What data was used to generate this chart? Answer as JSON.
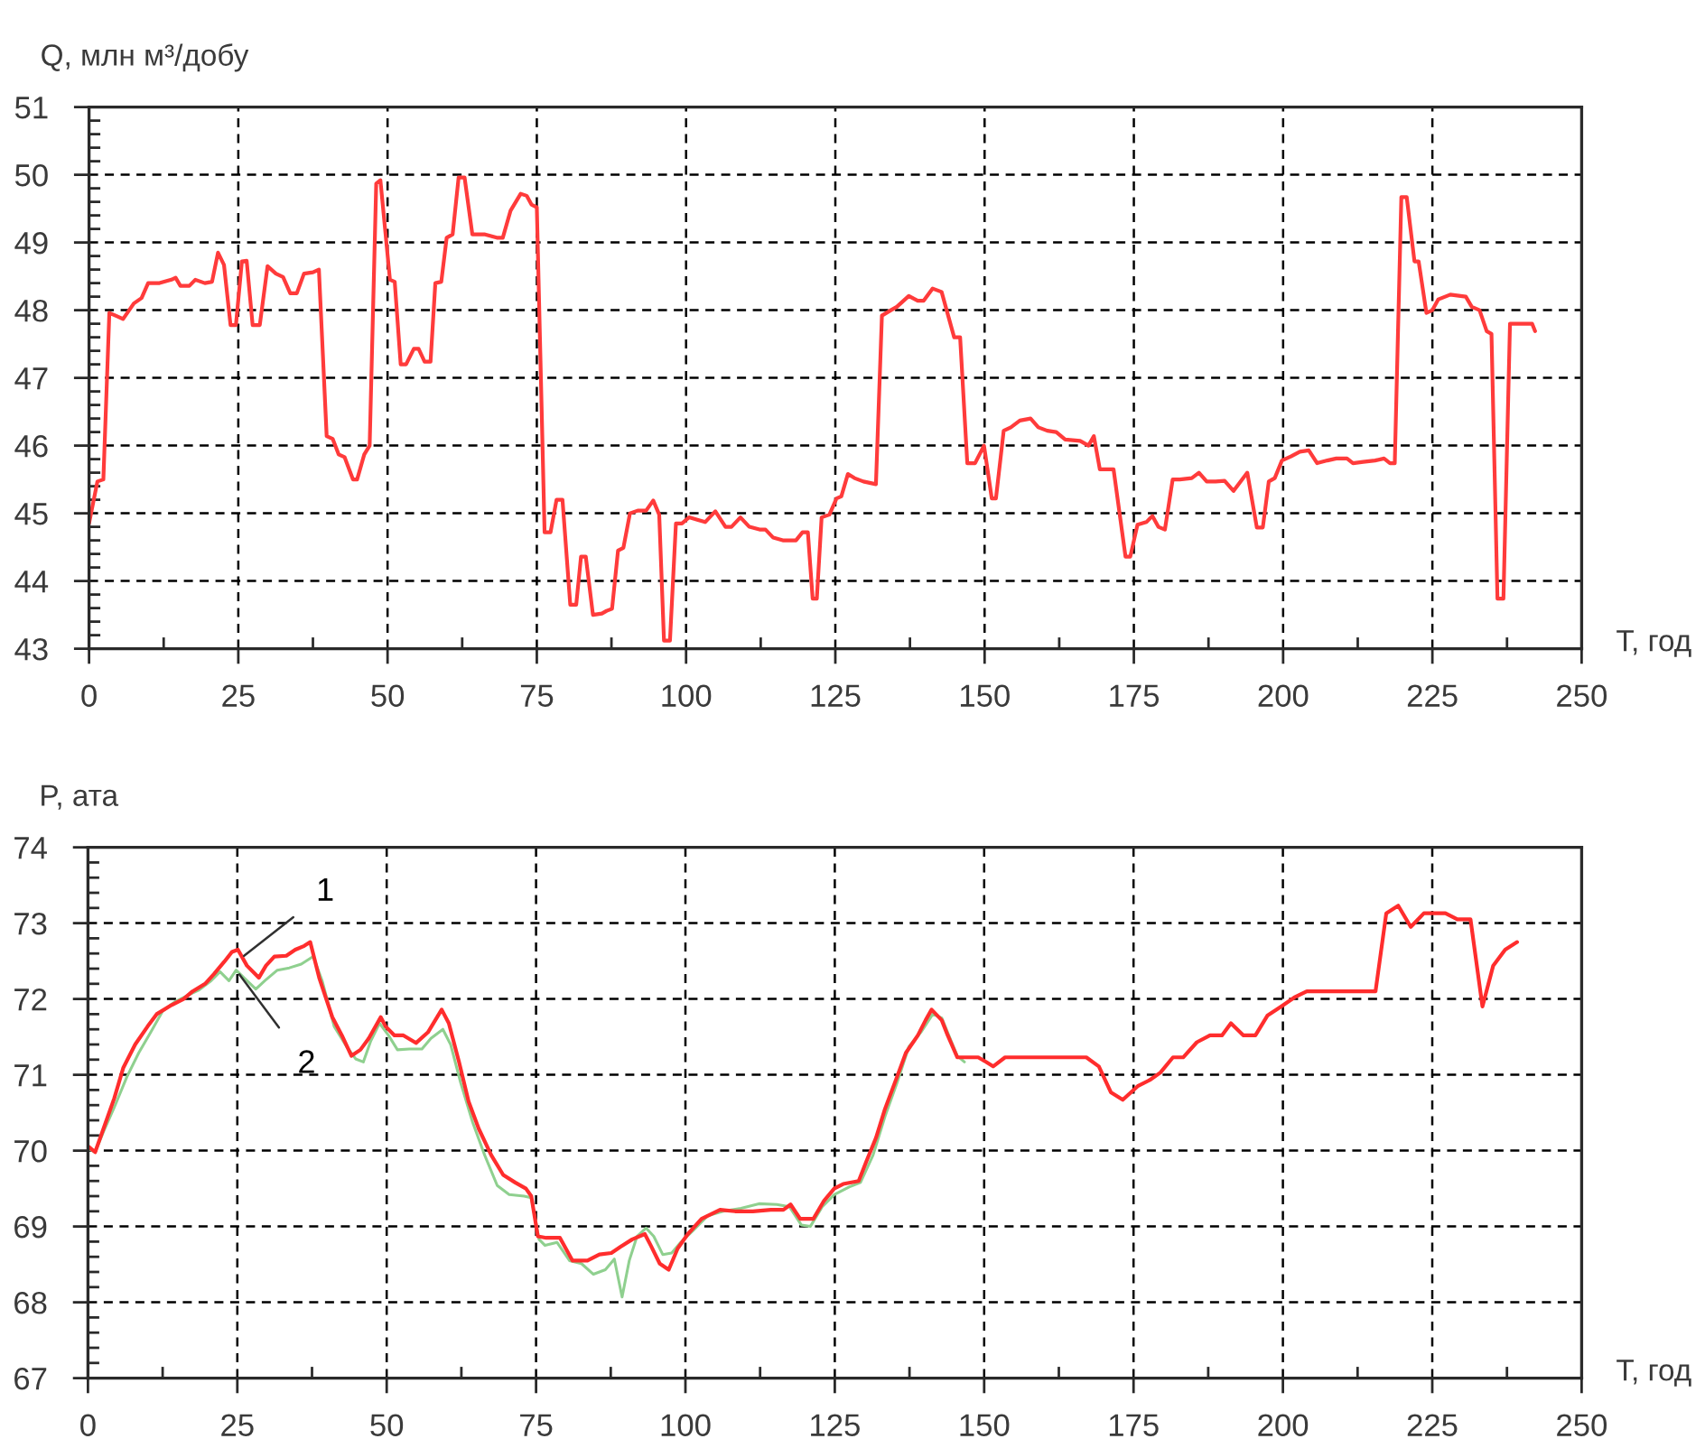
{
  "chart_data": [
    {
      "type": "line",
      "ylabel": "Q, млн м³/добу",
      "xlabel": "T, год",
      "xlim": [
        0,
        250
      ],
      "ylim": [
        43,
        51
      ],
      "grid": true,
      "xticks": [
        0,
        {
          "value": 12.5,
          "label": null
        },
        25,
        {
          "value": 37.5,
          "label": null
        },
        50,
        {
          "value": 62.5,
          "label": null
        },
        75,
        {
          "value": 87.5,
          "label": null
        },
        100,
        {
          "value": 112.5,
          "label": null
        },
        125,
        {
          "value": 137.5,
          "label": null
        },
        150,
        {
          "value": 162.5,
          "label": null
        },
        175,
        {
          "value": 187.5,
          "label": null
        },
        200,
        {
          "value": 212.5,
          "label": null
        },
        225,
        {
          "value": 237.5,
          "label": null
        },
        250
      ],
      "yticks": [
        43,
        {
          "value": 43.2,
          "label": null
        },
        {
          "value": 43.4,
          "label": null
        },
        {
          "value": 43.6,
          "label": null
        },
        {
          "value": 43.8,
          "label": null
        },
        44,
        {
          "value": 44.2,
          "label": null
        },
        {
          "value": 44.4,
          "label": null
        },
        {
          "value": 44.6,
          "label": null
        },
        {
          "value": 44.8,
          "label": null
        },
        45,
        {
          "value": 45.2,
          "label": null
        },
        {
          "value": 45.4,
          "label": null
        },
        {
          "value": 45.6,
          "label": null
        },
        {
          "value": 45.8,
          "label": null
        },
        46,
        {
          "value": 46.2,
          "label": null
        },
        {
          "value": 46.4,
          "label": null
        },
        {
          "value": 46.6,
          "label": null
        },
        {
          "value": 46.8,
          "label": null
        },
        47,
        {
          "value": 47.2,
          "label": null
        },
        {
          "value": 47.4,
          "label": null
        },
        {
          "value": 47.6,
          "label": null
        },
        {
          "value": 47.8,
          "label": null
        },
        48,
        {
          "value": 48.2,
          "label": null
        },
        {
          "value": 48.4,
          "label": null
        },
        {
          "value": 48.6,
          "label": null
        },
        {
          "value": 48.8,
          "label": null
        },
        49,
        {
          "value": 49.2,
          "label": null
        },
        {
          "value": 49.4,
          "label": null
        },
        {
          "value": 49.6,
          "label": null
        },
        {
          "value": 49.8,
          "label": null
        },
        50,
        {
          "value": 50.2,
          "label": null
        },
        {
          "value": 50.4,
          "label": null
        },
        {
          "value": 50.6,
          "label": null
        },
        {
          "value": 50.8,
          "label": null
        },
        51
      ],
      "series": [
        {
          "color": "#ff3b3b",
          "x": [
            0.0,
            0.7,
            1.4,
            2.4,
            3.4,
            4.7,
            5.7,
            7.5,
            8.8,
            9.9,
            11.8,
            13.8,
            14.5,
            15.3,
            16.8,
            17.8,
            19.4,
            20.6,
            21.6,
            22.6,
            23.7,
            24.6,
            25.6,
            26.4,
            27.4,
            28.6,
            29.9,
            31.3,
            32.5,
            33.7,
            34.8,
            36.0,
            37.5,
            38.5,
            39.8,
            40.8,
            41.8,
            42.8,
            44.2,
            44.9,
            46.1,
            47.0,
            48.1,
            48.8,
            50.4,
            51.2,
            52.2,
            53.1,
            54.4,
            55.2,
            56.2,
            57.2,
            58.0,
            59.0,
            59.9,
            60.9,
            61.9,
            62.9,
            64.2,
            66.2,
            68.3,
            69.3,
            70.6,
            72.3,
            73.3,
            74.1,
            75.0,
            76.3,
            77.3,
            78.3,
            79.3,
            80.6,
            81.6,
            82.4,
            83.2,
            84.4,
            85.9,
            86.7,
            87.6,
            88.6,
            89.5,
            90.6,
            91.9,
            93.3,
            94.5,
            95.5,
            96.3,
            97.3,
            98.3,
            99.3,
            100.5,
            102.0,
            103.2,
            104.9,
            106.6,
            107.6,
            109.1,
            110.6,
            112.3,
            113.3,
            114.6,
            116.2,
            118.4,
            119.5,
            120.4,
            121.2,
            121.9,
            122.7,
            124.0,
            125.2,
            126.0,
            127.1,
            128.2,
            129.7,
            131.8,
            132.8,
            134.3,
            135.3,
            137.3,
            138.8,
            139.8,
            141.3,
            142.8,
            144.9,
            145.9,
            147.1,
            148.4,
            149.9,
            151.2,
            151.9,
            153.2,
            154.4,
            155.9,
            157.7,
            159.0,
            160.5,
            162.0,
            163.5,
            166.0,
            167.4,
            168.3,
            169.3,
            171.6,
            173.6,
            174.4,
            175.6,
            177.1,
            178.1,
            179.1,
            180.2,
            181.5,
            182.7,
            184.7,
            185.9,
            187.2,
            188.7,
            190.2,
            191.7,
            194.0,
            195.6,
            196.6,
            197.6,
            198.6,
            199.8,
            201.3,
            202.8,
            204.3,
            205.7,
            207.4,
            208.9,
            210.7,
            211.7,
            213.4,
            215.4,
            216.9,
            217.9,
            218.7,
            219.8,
            220.7,
            222.0,
            222.7,
            224.0,
            225.0,
            226.0,
            228.0,
            230.6,
            231.6,
            232.9,
            234.1,
            234.9,
            235.9,
            236.9,
            238.0,
            239.6,
            241.7,
            242.2
          ],
          "values": [
            44.85,
            45.16,
            45.47,
            45.5,
            47.96,
            47.91,
            47.87,
            48.1,
            48.18,
            48.4,
            48.4,
            48.45,
            48.48,
            48.36,
            48.36,
            48.45,
            48.4,
            48.42,
            48.85,
            48.67,
            47.78,
            47.78,
            48.72,
            48.73,
            47.78,
            47.78,
            48.65,
            48.54,
            48.49,
            48.25,
            48.25,
            48.54,
            48.56,
            48.6,
            46.14,
            46.1,
            45.87,
            45.83,
            45.5,
            45.5,
            45.87,
            46.0,
            49.87,
            49.92,
            48.45,
            48.42,
            47.2,
            47.2,
            47.43,
            47.43,
            47.24,
            47.24,
            48.4,
            48.42,
            49.07,
            49.12,
            49.96,
            49.96,
            49.12,
            49.12,
            49.07,
            49.07,
            49.47,
            49.72,
            49.69,
            49.56,
            49.52,
            44.72,
            44.72,
            45.2,
            45.2,
            43.65,
            43.65,
            44.36,
            44.36,
            43.5,
            43.52,
            43.56,
            43.59,
            44.45,
            44.49,
            45.0,
            45.04,
            45.04,
            45.19,
            44.98,
            43.12,
            43.12,
            44.85,
            44.85,
            44.94,
            44.9,
            44.87,
            45.03,
            44.8,
            44.8,
            44.94,
            44.8,
            44.76,
            44.76,
            44.64,
            44.6,
            44.6,
            44.72,
            44.72,
            43.74,
            43.74,
            44.94,
            44.98,
            45.22,
            45.25,
            45.58,
            45.52,
            45.47,
            45.43,
            47.92,
            48.0,
            48.05,
            48.21,
            48.14,
            48.14,
            48.32,
            48.27,
            47.6,
            47.6,
            45.74,
            45.74,
            46.0,
            45.22,
            45.22,
            46.22,
            46.27,
            46.37,
            46.4,
            46.27,
            46.22,
            46.2,
            46.09,
            46.07,
            46.0,
            46.14,
            45.65,
            45.65,
            44.36,
            44.36,
            44.83,
            44.87,
            44.96,
            44.8,
            44.76,
            45.5,
            45.5,
            45.52,
            45.6,
            45.47,
            45.47,
            45.48,
            45.33,
            45.6,
            44.79,
            44.79,
            45.47,
            45.52,
            45.78,
            45.84,
            45.91,
            45.93,
            45.74,
            45.78,
            45.81,
            45.81,
            45.74,
            45.76,
            45.78,
            45.81,
            45.74,
            45.74,
            49.67,
            49.67,
            48.72,
            48.72,
            47.96,
            48.0,
            48.16,
            48.23,
            48.2,
            48.05,
            48.0,
            47.69,
            47.65,
            43.74,
            43.74,
            47.8,
            47.8,
            47.8,
            47.69
          ]
        }
      ]
    },
    {
      "type": "line",
      "ylabel": "P, ата",
      "xlabel": "T, год",
      "xlim": [
        0,
        250
      ],
      "ylim": [
        67,
        74
      ],
      "grid": true,
      "xticks": [
        0,
        {
          "value": 12.5,
          "label": null
        },
        25,
        {
          "value": 37.5,
          "label": null
        },
        50,
        {
          "value": 62.5,
          "label": null
        },
        75,
        {
          "value": 87.5,
          "label": null
        },
        100,
        {
          "value": 112.5,
          "label": null
        },
        125,
        {
          "value": 137.5,
          "label": null
        },
        150,
        {
          "value": 162.5,
          "label": null
        },
        175,
        {
          "value": 187.5,
          "label": null
        },
        200,
        {
          "value": 212.5,
          "label": null
        },
        225,
        {
          "value": 237.5,
          "label": null
        },
        250
      ],
      "yticks": [
        67,
        {
          "value": 67.2,
          "label": null
        },
        {
          "value": 67.4,
          "label": null
        },
        {
          "value": 67.6,
          "label": null
        },
        {
          "value": 67.8,
          "label": null
        },
        68,
        {
          "value": 68.2,
          "label": null
        },
        {
          "value": 68.4,
          "label": null
        },
        {
          "value": 68.6,
          "label": null
        },
        {
          "value": 68.8,
          "label": null
        },
        69,
        {
          "value": 69.2,
          "label": null
        },
        {
          "value": 69.4,
          "label": null
        },
        {
          "value": 69.6,
          "label": null
        },
        {
          "value": 69.8,
          "label": null
        },
        70,
        {
          "value": 70.2,
          "label": null
        },
        {
          "value": 70.4,
          "label": null
        },
        {
          "value": 70.6,
          "label": null
        },
        {
          "value": 70.8,
          "label": null
        },
        71,
        {
          "value": 71.2,
          "label": null
        },
        {
          "value": 71.4,
          "label": null
        },
        {
          "value": 71.6,
          "label": null
        },
        {
          "value": 71.8,
          "label": null
        },
        72,
        {
          "value": 72.2,
          "label": null
        },
        {
          "value": 72.4,
          "label": null
        },
        {
          "value": 72.6,
          "label": null
        },
        {
          "value": 72.8,
          "label": null
        },
        73,
        {
          "value": 73.2,
          "label": null
        },
        {
          "value": 73.4,
          "label": null
        },
        {
          "value": 73.6,
          "label": null
        },
        {
          "value": 73.8,
          "label": null
        },
        74
      ],
      "annotations": [
        {
          "text": "1",
          "x": 25.8,
          "y": 72.55
        },
        {
          "text": "2",
          "x": 25.1,
          "y": 72.35
        }
      ],
      "series": [
        {
          "color": "#ff2d2d",
          "x": [
            0.0,
            1.2,
            2.6,
            4.4,
            5.9,
            7.9,
            10.0,
            11.5,
            14.0,
            16.0,
            17.5,
            19.6,
            21.1,
            22.8,
            24.1,
            25.1,
            26.6,
            28.6,
            29.8,
            31.2,
            33.2,
            34.7,
            36.2,
            37.2,
            38.7,
            40.9,
            42.5,
            44.1,
            45.6,
            47.0,
            49.0,
            49.8,
            51.3,
            52.8,
            54.9,
            56.9,
            59.2,
            60.4,
            62.1,
            63.7,
            65.4,
            67.5,
            69.5,
            71.5,
            73.3,
            74.2,
            75.3,
            76.7,
            79.0,
            81.1,
            83.6,
            85.6,
            87.6,
            89.1,
            91.1,
            93.2,
            94.2,
            95.7,
            97.2,
            98.7,
            100.4,
            102.7,
            105.8,
            108.3,
            111.3,
            114.3,
            116.4,
            117.6,
            119.2,
            121.4,
            123.2,
            124.9,
            126.4,
            129.0,
            130.3,
            131.9,
            133.4,
            135.4,
            136.9,
            138.9,
            140.2,
            141.2,
            142.9,
            143.9,
            145.5,
            147.0,
            149.0,
            150.3,
            151.5,
            153.5,
            156.6,
            160.6,
            164.6,
            167.1,
            169.2,
            171.2,
            173.2,
            175.7,
            177.7,
            179.5,
            181.6,
            183.3,
            185.6,
            187.8,
            189.8,
            191.3,
            193.4,
            195.4,
            197.4,
            199.7,
            201.9,
            204.0,
            207.0,
            211.0,
            215.5,
            217.3,
            219.3,
            221.4,
            223.6,
            227.2,
            229.2,
            231.4,
            233.4,
            235.2,
            237.2,
            239.2
          ],
          "values": [
            70.06,
            69.98,
            70.29,
            70.69,
            71.09,
            71.4,
            71.64,
            71.8,
            71.92,
            72.0,
            72.1,
            72.2,
            72.33,
            72.49,
            72.62,
            72.65,
            72.44,
            72.28,
            72.44,
            72.56,
            72.57,
            72.65,
            72.7,
            72.75,
            72.28,
            71.76,
            71.52,
            71.25,
            71.33,
            71.48,
            71.76,
            71.64,
            71.52,
            71.52,
            71.42,
            71.56,
            71.86,
            71.68,
            71.17,
            70.65,
            70.29,
            69.94,
            69.68,
            69.58,
            69.5,
            69.4,
            68.87,
            68.85,
            68.85,
            68.55,
            68.55,
            68.63,
            68.65,
            68.73,
            68.83,
            68.9,
            68.75,
            68.51,
            68.43,
            68.71,
            68.9,
            69.1,
            69.22,
            69.2,
            69.2,
            69.22,
            69.22,
            69.29,
            69.1,
            69.1,
            69.34,
            69.5,
            69.56,
            69.6,
            69.86,
            70.17,
            70.55,
            70.97,
            71.29,
            71.52,
            71.72,
            71.86,
            71.72,
            71.52,
            71.23,
            71.23,
            71.23,
            71.17,
            71.11,
            71.23,
            71.23,
            71.23,
            71.23,
            71.23,
            71.11,
            70.77,
            70.67,
            70.85,
            70.93,
            71.03,
            71.23,
            71.23,
            71.43,
            71.52,
            71.52,
            71.68,
            71.52,
            71.52,
            71.78,
            71.9,
            72.02,
            72.1,
            72.1,
            72.1,
            72.1,
            73.13,
            73.23,
            72.95,
            73.13,
            73.13,
            73.05,
            73.05,
            71.9,
            72.44,
            72.65,
            72.75
          ]
        },
        {
          "color": "#8fd08f",
          "x": [
            0.0,
            1.2,
            2.6,
            4.4,
            6.5,
            8.5,
            10.5,
            12.5,
            14.5,
            16.5,
            18.6,
            20.6,
            22.1,
            23.6,
            24.8,
            26.1,
            28.1,
            29.6,
            31.7,
            33.7,
            35.7,
            37.7,
            39.2,
            41.2,
            43.3,
            44.8,
            46.1,
            47.3,
            48.8,
            50.3,
            51.8,
            53.8,
            55.9,
            57.4,
            59.4,
            60.7,
            62.4,
            64.4,
            66.4,
            68.5,
            70.5,
            73.0,
            74.2,
            75.5,
            76.5,
            78.5,
            80.6,
            82.6,
            84.6,
            86.6,
            88.1,
            89.4,
            90.6,
            91.9,
            93.4,
            94.7,
            96.2,
            97.7,
            99.2,
            101.2,
            103.7,
            106.3,
            109.3,
            112.3,
            115.3,
            117.4,
            119.4,
            120.9,
            122.9,
            124.9,
            127.4,
            129.3,
            131.4,
            133.4,
            135.4,
            137.4,
            139.4,
            141.4,
            142.9,
            144.5,
            145.5,
            146.7
          ],
          "values": [
            70.03,
            69.98,
            70.25,
            70.57,
            70.97,
            71.29,
            71.56,
            71.84,
            71.96,
            72.04,
            72.12,
            72.24,
            72.36,
            72.24,
            72.38,
            72.28,
            72.13,
            72.24,
            72.38,
            72.41,
            72.46,
            72.56,
            72.24,
            71.64,
            71.37,
            71.21,
            71.17,
            71.44,
            71.68,
            71.52,
            71.33,
            71.34,
            71.34,
            71.48,
            71.6,
            71.4,
            70.89,
            70.37,
            69.94,
            69.54,
            69.42,
            69.4,
            69.38,
            68.83,
            68.75,
            68.79,
            68.55,
            68.51,
            68.37,
            68.43,
            68.57,
            68.07,
            68.55,
            68.87,
            68.98,
            68.87,
            68.63,
            68.65,
            68.79,
            68.94,
            69.14,
            69.2,
            69.24,
            69.3,
            69.29,
            69.26,
            69.02,
            69.0,
            69.26,
            69.42,
            69.52,
            69.58,
            69.94,
            70.45,
            70.89,
            71.37,
            71.56,
            71.8,
            71.75,
            71.44,
            71.25,
            71.17
          ]
        }
      ]
    }
  ]
}
